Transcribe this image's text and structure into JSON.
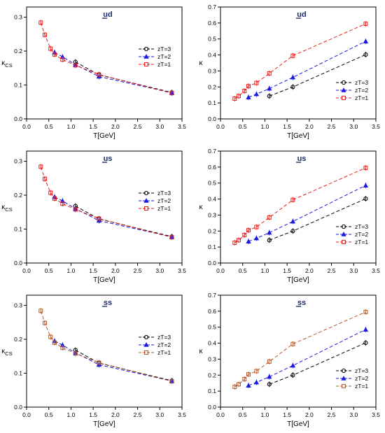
{
  "chart_data": [
    {
      "type": "line",
      "title": "ud",
      "title_overline": "u",
      "xlabel": "T[GeV]",
      "ylabel": "κCS",
      "xlim": [
        0.0,
        3.5
      ],
      "ylim": [
        0.0,
        0.33
      ],
      "xticks": [
        "0.0",
        "0.5",
        "1.0",
        "1.5",
        "2.0",
        "2.5",
        "3.0",
        "3.5"
      ],
      "yticks": [
        "0.0",
        "0.1",
        "0.2",
        "0.3"
      ],
      "legend_position": "right",
      "series": [
        {
          "name": "zT=3",
          "color": "#000000",
          "marker": "circle",
          "x": [
            1.1,
            1.63,
            3.27
          ],
          "y": [
            0.168,
            0.13,
            0.078
          ]
        },
        {
          "name": "zT=2",
          "color": "#1a1adf",
          "marker": "triangle",
          "x": [
            0.63,
            0.81,
            1.1,
            1.63,
            3.27
          ],
          "y": [
            0.196,
            0.183,
            0.16,
            0.125,
            0.077
          ]
        },
        {
          "name": "zT=1",
          "color": "#e8201e",
          "marker": "square",
          "x": [
            0.32,
            0.41,
            0.54,
            0.63,
            0.81,
            1.1,
            1.63,
            3.27
          ],
          "y": [
            0.284,
            0.248,
            0.207,
            0.19,
            0.175,
            0.158,
            0.131,
            0.076
          ]
        }
      ]
    },
    {
      "type": "line",
      "title": "ud",
      "title_overline": "u",
      "xlabel": "T[GeV]",
      "ylabel": "κ",
      "xlim": [
        0.0,
        3.5
      ],
      "ylim": [
        0.0,
        0.7
      ],
      "xticks": [
        "0.0",
        "0.5",
        "1.0",
        "1.5",
        "2.0",
        "2.5",
        "3.0",
        "3.5"
      ],
      "yticks": [
        "0.0",
        "0.1",
        "0.2",
        "0.3",
        "0.4",
        "0.5",
        "0.6",
        "0.7"
      ],
      "legend_position": "bottom-right",
      "series": [
        {
          "name": "zT=3",
          "color": "#000000",
          "marker": "circle",
          "x": [
            1.1,
            1.63,
            3.27
          ],
          "y": [
            0.143,
            0.2,
            0.402
          ]
        },
        {
          "name": "zT=2",
          "color": "#1a1adf",
          "marker": "triangle",
          "x": [
            0.63,
            0.81,
            1.1,
            1.63,
            3.27
          ],
          "y": [
            0.135,
            0.155,
            0.19,
            0.26,
            0.485
          ]
        },
        {
          "name": "zT=1",
          "color": "#e8201e",
          "marker": "square",
          "x": [
            0.32,
            0.41,
            0.54,
            0.63,
            0.81,
            1.1,
            1.63,
            3.27
          ],
          "y": [
            0.127,
            0.143,
            0.175,
            0.205,
            0.225,
            0.285,
            0.395,
            0.595
          ]
        }
      ]
    },
    {
      "type": "line",
      "title": "us",
      "title_overline": "u",
      "xlabel": "T[GeV]",
      "ylabel": "κCS",
      "xlim": [
        0.0,
        3.5
      ],
      "ylim": [
        0.0,
        0.33
      ],
      "xticks": [
        "0.0",
        "0.5",
        "1.0",
        "1.5",
        "2.0",
        "2.5",
        "3.0",
        "3.5"
      ],
      "yticks": [
        "0.0",
        "0.1",
        "0.2",
        "0.3"
      ],
      "legend_position": "right",
      "series": [
        {
          "name": "zT=3",
          "color": "#000000",
          "marker": "circle",
          "x": [
            1.1,
            1.63,
            3.27
          ],
          "y": [
            0.168,
            0.13,
            0.078
          ]
        },
        {
          "name": "zT=2",
          "color": "#1a1adf",
          "marker": "triangle",
          "x": [
            0.63,
            0.81,
            1.1,
            1.63,
            3.27
          ],
          "y": [
            0.195,
            0.183,
            0.16,
            0.125,
            0.077
          ]
        },
        {
          "name": "zT=1",
          "color": "#e8201e",
          "marker": "square",
          "x": [
            0.32,
            0.41,
            0.54,
            0.63,
            0.81,
            1.1,
            1.63,
            3.27
          ],
          "y": [
            0.284,
            0.248,
            0.207,
            0.19,
            0.175,
            0.158,
            0.131,
            0.076
          ]
        }
      ]
    },
    {
      "type": "line",
      "title": "us",
      "title_overline": "u",
      "xlabel": "T[GeV]",
      "ylabel": "κ",
      "xlim": [
        0.0,
        3.5
      ],
      "ylim": [
        0.0,
        0.7
      ],
      "xticks": [
        "0.0",
        "0.5",
        "1.0",
        "1.5",
        "2.0",
        "2.5",
        "3.0",
        "3.5"
      ],
      "yticks": [
        "0.0",
        "0.1",
        "0.2",
        "0.3",
        "0.4",
        "0.5",
        "0.6",
        "0.7"
      ],
      "legend_position": "bottom-right",
      "series": [
        {
          "name": "zT=3",
          "color": "#000000",
          "marker": "circle",
          "x": [
            1.1,
            1.63,
            3.27
          ],
          "y": [
            0.143,
            0.2,
            0.402
          ]
        },
        {
          "name": "zT=2",
          "color": "#1a1adf",
          "marker": "triangle",
          "x": [
            0.63,
            0.81,
            1.1,
            1.63,
            3.27
          ],
          "y": [
            0.135,
            0.155,
            0.19,
            0.26,
            0.485
          ]
        },
        {
          "name": "zT=1",
          "color": "#e8201e",
          "marker": "square",
          "x": [
            0.32,
            0.41,
            0.54,
            0.63,
            0.81,
            1.1,
            1.63,
            3.27
          ],
          "y": [
            0.127,
            0.143,
            0.175,
            0.205,
            0.225,
            0.285,
            0.395,
            0.595
          ]
        }
      ]
    },
    {
      "type": "line",
      "title": "ss",
      "title_overline": "s",
      "xlabel": "T[GeV]",
      "ylabel": "κCS",
      "xlim": [
        0.0,
        3.5
      ],
      "ylim": [
        0.0,
        0.33
      ],
      "xticks": [
        "0.0",
        "0.5",
        "1.0",
        "1.5",
        "2.0",
        "2.5",
        "3.0",
        "3.5"
      ],
      "yticks": [
        "0.0",
        "0.1",
        "0.2",
        "0.3"
      ],
      "legend_position": "right",
      "series": [
        {
          "name": "zT=3",
          "color": "#000000",
          "marker": "circle",
          "x": [
            1.1,
            1.63,
            3.27
          ],
          "y": [
            0.168,
            0.13,
            0.078
          ]
        },
        {
          "name": "zT=2",
          "color": "#1a1adf",
          "marker": "triangle",
          "x": [
            0.63,
            0.81,
            1.1,
            1.63,
            3.27
          ],
          "y": [
            0.195,
            0.183,
            0.16,
            0.125,
            0.077
          ]
        },
        {
          "name": "zT=1",
          "color": "#b45a2a",
          "marker": "square",
          "x": [
            0.32,
            0.41,
            0.54,
            0.63,
            0.81,
            1.1,
            1.63,
            3.27
          ],
          "y": [
            0.284,
            0.248,
            0.207,
            0.19,
            0.175,
            0.158,
            0.131,
            0.076
          ]
        }
      ]
    },
    {
      "type": "line",
      "title": "ss",
      "title_overline": "s",
      "xlabel": "T[GeV]",
      "ylabel": "κ",
      "xlim": [
        0.0,
        3.5
      ],
      "ylim": [
        0.0,
        0.7
      ],
      "xticks": [
        "0.0",
        "0.5",
        "1.0",
        "1.5",
        "2.0",
        "2.5",
        "3.0",
        "3.5"
      ],
      "yticks": [
        "0.0",
        "0.1",
        "0.2",
        "0.3",
        "0.4",
        "0.5",
        "0.6",
        "0.7"
      ],
      "legend_position": "bottom-right",
      "series": [
        {
          "name": "zT=3",
          "color": "#000000",
          "marker": "circle",
          "x": [
            1.1,
            1.63,
            3.27
          ],
          "y": [
            0.143,
            0.2,
            0.402
          ]
        },
        {
          "name": "zT=2",
          "color": "#1a1adf",
          "marker": "triangle",
          "x": [
            0.63,
            0.81,
            1.1,
            1.63,
            3.27
          ],
          "y": [
            0.135,
            0.155,
            0.19,
            0.26,
            0.485
          ]
        },
        {
          "name": "zT=1",
          "color": "#b45a2a",
          "marker": "square",
          "x": [
            0.32,
            0.41,
            0.54,
            0.63,
            0.81,
            1.1,
            1.63,
            3.27
          ],
          "y": [
            0.127,
            0.143,
            0.175,
            0.205,
            0.225,
            0.285,
            0.395,
            0.595
          ]
        }
      ]
    }
  ]
}
